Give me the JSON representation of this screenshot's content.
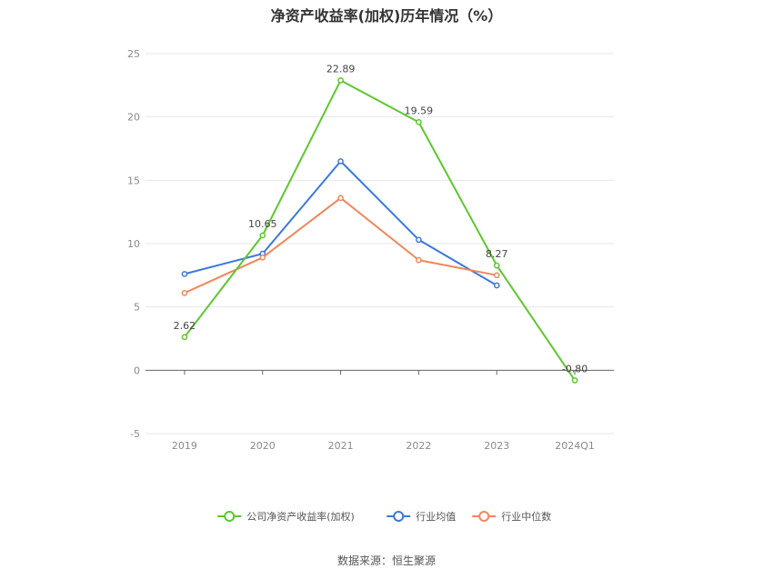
{
  "title": "净资产收益率(加权)历年情况（%）",
  "source": "数据来源：恒生聚源",
  "chart_data": {
    "type": "line",
    "title": "净资产收益率(加权)历年情况（%）",
    "categories": [
      "2019",
      "2020",
      "2021",
      "2022",
      "2023",
      "2024Q1"
    ],
    "ylim": [
      -5,
      25
    ],
    "yticks": [
      -5,
      0,
      5,
      10,
      15,
      20,
      25
    ],
    "grid": true,
    "legend_position": "bottom",
    "series": [
      {
        "name": "公司净资产收益率(加权)",
        "color": "#5cc72f",
        "values": [
          2.62,
          10.65,
          22.89,
          19.59,
          8.27,
          -0.8
        ],
        "labels": [
          "2.62",
          "10.65",
          "22.89",
          "19.59",
          "8.27",
          "-0.80"
        ]
      },
      {
        "name": "行业均值",
        "color": "#3b78dc",
        "values": [
          7.6,
          9.2,
          16.5,
          10.3,
          6.7,
          null
        ]
      },
      {
        "name": "行业中位数",
        "color": "#f0875a",
        "values": [
          6.1,
          8.9,
          13.6,
          8.7,
          7.5,
          null
        ]
      }
    ]
  }
}
